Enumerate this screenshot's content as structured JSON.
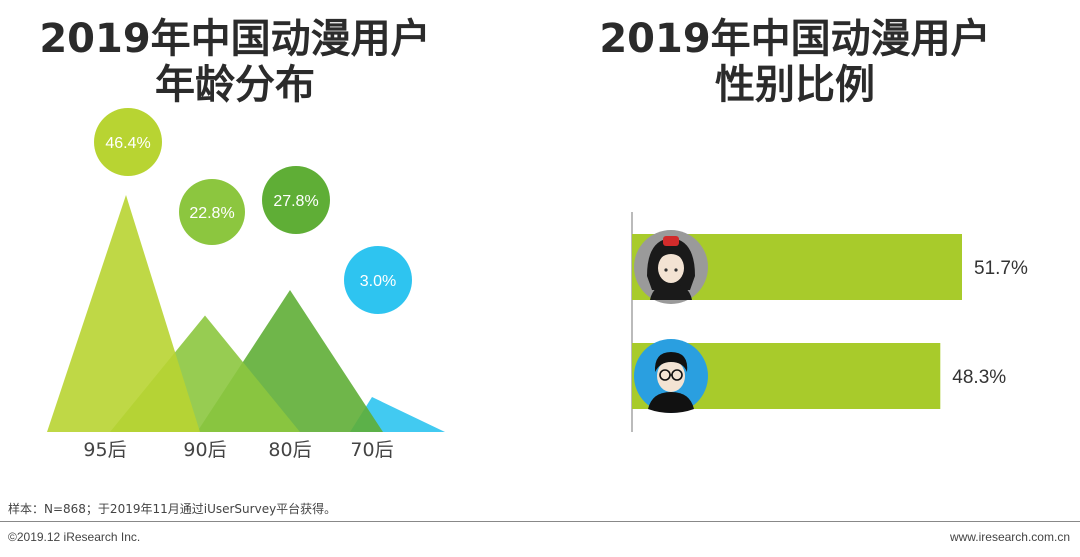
{
  "left_title": [
    "2019年中国动漫用户",
    "年龄分布"
  ],
  "right_title": [
    "2019年中国动漫用户",
    "性别比例"
  ],
  "footnote": "样本：N=868；于2019年11月通过iUserSurvey平台获得。",
  "copyright": "©2019.12 iResearch Inc.",
  "website": "www.iresearch.com.cn",
  "chart_data": [
    {
      "type": "area",
      "title": "2019年中国动漫用户年龄分布",
      "categories": [
        "95后",
        "90后",
        "80后",
        "70后"
      ],
      "values": [
        46.4,
        22.8,
        27.8,
        3.0
      ],
      "labels": [
        "46.4%",
        "22.8%",
        "27.8%",
        "3.0%"
      ],
      "colors": [
        "#b8d432",
        "#8cc63f",
        "#5fae36",
        "#2ec4f0"
      ],
      "grid": false,
      "legend": "none"
    },
    {
      "type": "bar",
      "orientation": "horizontal",
      "title": "2019年中国动漫用户性别比例",
      "categories": [
        "female-icon",
        "male-icon"
      ],
      "values": [
        51.7,
        48.3
      ],
      "labels": [
        "51.7%",
        "48.3%"
      ],
      "color": "#a8cb2b",
      "grid": false,
      "legend": "none"
    }
  ]
}
